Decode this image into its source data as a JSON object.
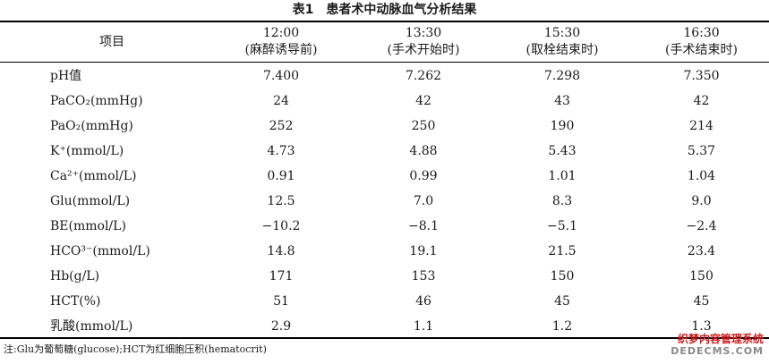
{
  "table": {
    "caption_label": "表1",
    "caption_title": "患者术中动脉血气分析结果",
    "header": {
      "item": "项目",
      "columns": [
        {
          "time": "12:00",
          "stage": "(麻醉诱导前)"
        },
        {
          "time": "13:30",
          "stage": "(手术开始时)"
        },
        {
          "time": "15:30",
          "stage": "(取栓结束时)"
        },
        {
          "time": "16:30",
          "stage": "(手术结束时)"
        }
      ]
    },
    "rows": [
      {
        "label": "pH值",
        "values": [
          "7.400",
          "7.262",
          "7.298",
          "7.350"
        ]
      },
      {
        "label": "PaCO₂(mmHg)",
        "values": [
          "24",
          "42",
          "43",
          "42"
        ]
      },
      {
        "label": "PaO₂(mmHg)",
        "values": [
          "252",
          "250",
          "190",
          "214"
        ]
      },
      {
        "label": "K⁺(mmol/L)",
        "values": [
          "4.73",
          "4.88",
          "5.43",
          "5.37"
        ]
      },
      {
        "label": "Ca²⁺(mmol/L)",
        "values": [
          "0.91",
          "0.99",
          "1.01",
          "1.04"
        ]
      },
      {
        "label": "Glu(mmol/L)",
        "values": [
          "12.5",
          "7.0",
          "8.3",
          "9.0"
        ]
      },
      {
        "label": "BE(mmol/L)",
        "values": [
          "−10.2",
          "−8.1",
          "−5.1",
          "−2.4"
        ]
      },
      {
        "label": "HCO³⁻(mmol/L)",
        "values": [
          "14.8",
          "19.1",
          "21.5",
          "23.4"
        ]
      },
      {
        "label": "Hb(g/L)",
        "values": [
          "171",
          "153",
          "150",
          "150"
        ]
      },
      {
        "label": "HCT(%)",
        "values": [
          "51",
          "46",
          "45",
          "45"
        ]
      },
      {
        "label": "乳酸(mmol/L)",
        "values": [
          "2.9",
          "1.1",
          "1.2",
          "1.3"
        ]
      }
    ],
    "note": "注:Glu为葡萄糖(glucose);HCT为红细胞压积(hematocrit)"
  },
  "watermark": {
    "line1": "织梦内容管理系统",
    "line2": "DEDECMS.COM"
  }
}
